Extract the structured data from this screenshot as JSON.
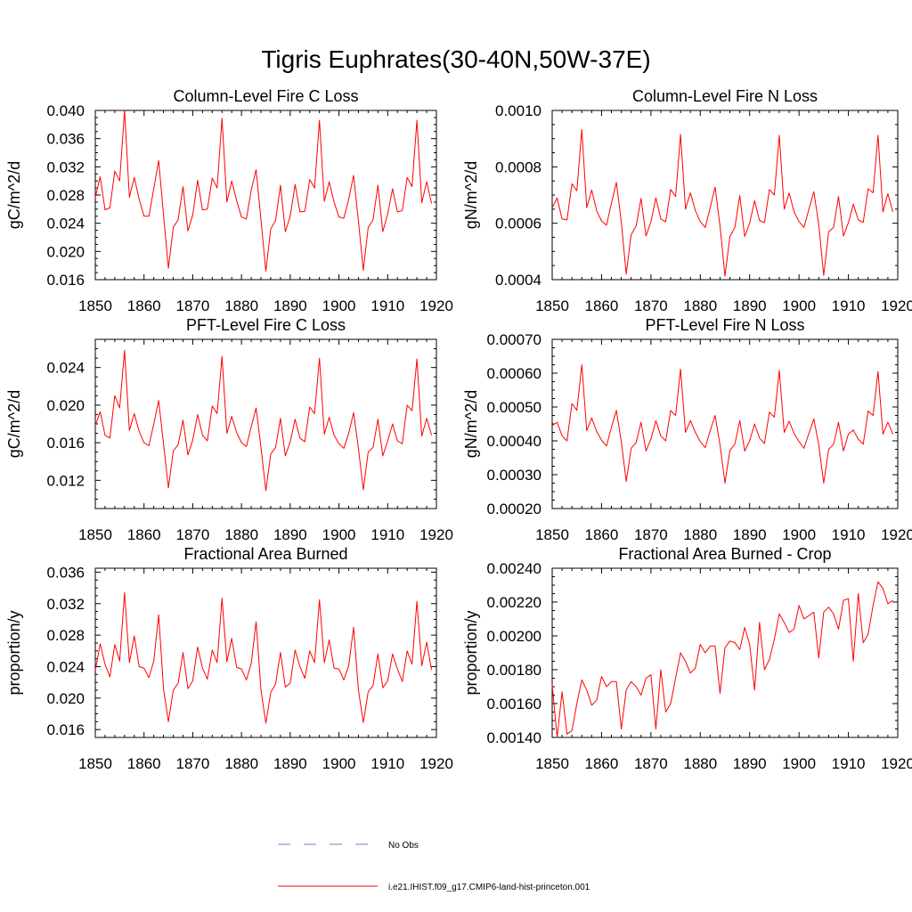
{
  "figure_title": "Tigris Euphrates(30-40N,50W-37E)",
  "legend": {
    "entries": [
      {
        "label": "No Obs",
        "color": "#6f7fbf",
        "dash": true
      },
      {
        "label": "i.e21.IHIST.f09_g17.CMIP6-land-hist-princeton.001",
        "color": "#ff0000",
        "dash": false
      }
    ]
  },
  "chart_data": [
    {
      "type": "line",
      "title": "Column-Level Fire C Loss",
      "ylabel": "gC/m^2/d",
      "xlim": [
        1850,
        1920
      ],
      "ylim": [
        0.016,
        0.04
      ],
      "xticks": [
        1850,
        1860,
        1870,
        1880,
        1890,
        1900,
        1910,
        1920
      ],
      "yticks": [
        0.016,
        0.02,
        0.024,
        0.028,
        0.032,
        0.036,
        0.04
      ],
      "ytick_labels": [
        "0.016",
        "0.020",
        "0.024",
        "0.028",
        "0.032",
        "0.036",
        "0.040"
      ],
      "x_start": 1850,
      "series": [
        {
          "color": "#ff0000",
          "values": [
            0.0276,
            0.0306,
            0.0259,
            0.0262,
            0.0314,
            0.03,
            0.04,
            0.0277,
            0.0305,
            0.0274,
            0.025,
            0.025,
            0.0289,
            0.0329,
            0.0252,
            0.0176,
            0.0234,
            0.0245,
            0.0292,
            0.0229,
            0.0252,
            0.0301,
            0.0259,
            0.026,
            0.0304,
            0.029,
            0.0389,
            0.027,
            0.03,
            0.0272,
            0.0249,
            0.0246,
            0.0287,
            0.0316,
            0.0245,
            0.0172,
            0.0232,
            0.0244,
            0.0294,
            0.0228,
            0.025,
            0.0295,
            0.0256,
            0.0257,
            0.0302,
            0.029,
            0.0386,
            0.0271,
            0.0299,
            0.027,
            0.0249,
            0.0247,
            0.0274,
            0.0308,
            0.0243,
            0.0173,
            0.0234,
            0.0245,
            0.0294,
            0.0228,
            0.0253,
            0.0289,
            0.0256,
            0.0258,
            0.0305,
            0.0292,
            0.0386,
            0.0269,
            0.0299,
            0.0268
          ]
        }
      ]
    },
    {
      "type": "line",
      "title": "Column-Level Fire N Loss",
      "ylabel": "gN/m^2/d",
      "xlim": [
        1850,
        1920
      ],
      "ylim": [
        0.0004,
        0.001
      ],
      "xticks": [
        1850,
        1860,
        1870,
        1880,
        1890,
        1900,
        1910,
        1920
      ],
      "yticks": [
        0.0004,
        0.0006,
        0.0008,
        0.001
      ],
      "ytick_labels": [
        "0.0004",
        "0.0006",
        "0.0008",
        "0.0010"
      ],
      "x_start": 1850,
      "series": [
        {
          "color": "#ff0000",
          "values": [
            0.000655,
            0.00069,
            0.000615,
            0.000612,
            0.00074,
            0.000715,
            0.000932,
            0.000655,
            0.000718,
            0.000645,
            0.000608,
            0.000593,
            0.00067,
            0.000745,
            0.000605,
            0.00042,
            0.00056,
            0.00059,
            0.000688,
            0.000555,
            0.000605,
            0.00069,
            0.000615,
            0.000605,
            0.00072,
            0.000695,
            0.000915,
            0.00065,
            0.000708,
            0.000645,
            0.000606,
            0.000585,
            0.000655,
            0.000728,
            0.00059,
            0.000412,
            0.000553,
            0.000585,
            0.000698,
            0.000553,
            0.0006,
            0.00068,
            0.00061,
            0.000602,
            0.00072,
            0.0007,
            0.000912,
            0.00065,
            0.000707,
            0.00064,
            0.000606,
            0.000585,
            0.00065,
            0.000712,
            0.000595,
            0.000415,
            0.00057,
            0.000585,
            0.000695,
            0.000555,
            0.000602,
            0.000668,
            0.000612,
            0.000603,
            0.000722,
            0.000708,
            0.000912,
            0.00064,
            0.000705,
            0.00064
          ]
        }
      ]
    },
    {
      "type": "line",
      "title": "PFT-Level Fire C Loss",
      "ylabel": "gC/m^2/d",
      "xlim": [
        1850,
        1920
      ],
      "ylim": [
        0.009,
        0.027
      ],
      "xticks": [
        1850,
        1860,
        1870,
        1880,
        1890,
        1900,
        1910,
        1920
      ],
      "yticks": [
        0.012,
        0.016,
        0.02,
        0.024
      ],
      "ytick_labels": [
        "0.012",
        "0.016",
        "0.020",
        "0.024"
      ],
      "x_start": 1850,
      "series": [
        {
          "color": "#ff0000",
          "values": [
            0.0178,
            0.0193,
            0.0168,
            0.0165,
            0.021,
            0.0197,
            0.0258,
            0.0173,
            0.0191,
            0.0172,
            0.016,
            0.0157,
            0.018,
            0.0205,
            0.0159,
            0.0112,
            0.0151,
            0.0158,
            0.0184,
            0.0147,
            0.0163,
            0.019,
            0.0168,
            0.0162,
            0.0199,
            0.0191,
            0.0252,
            0.017,
            0.0188,
            0.0171,
            0.016,
            0.0156,
            0.0177,
            0.0197,
            0.0155,
            0.0109,
            0.0148,
            0.0155,
            0.0186,
            0.0146,
            0.0161,
            0.0185,
            0.0165,
            0.0161,
            0.0198,
            0.0191,
            0.025,
            0.0169,
            0.0187,
            0.0168,
            0.0159,
            0.0154,
            0.017,
            0.0192,
            0.0154,
            0.011,
            0.015,
            0.0155,
            0.0185,
            0.0146,
            0.0162,
            0.018,
            0.0162,
            0.0159,
            0.02,
            0.0194,
            0.0249,
            0.0167,
            0.0186,
            0.0168
          ]
        }
      ]
    },
    {
      "type": "line",
      "title": "PFT-Level Fire N Loss",
      "ylabel": "gN/m^2/d",
      "xlim": [
        1850,
        1920
      ],
      "ylim": [
        0.0002,
        0.0007
      ],
      "xticks": [
        1850,
        1860,
        1870,
        1880,
        1890,
        1900,
        1910,
        1920
      ],
      "yticks": [
        0.0002,
        0.0003,
        0.0004,
        0.0005,
        0.0006,
        0.0007
      ],
      "ytick_labels": [
        "0.00020",
        "0.00030",
        "0.00040",
        "0.00050",
        "0.00060",
        "0.00070"
      ],
      "x_start": 1850,
      "series": [
        {
          "color": "#ff0000",
          "values": [
            0.000445,
            0.000455,
            0.000415,
            0.0004,
            0.00051,
            0.00049,
            0.000625,
            0.00043,
            0.000468,
            0.000428,
            0.000402,
            0.000385,
            0.00044,
            0.00049,
            0.000398,
            0.00028,
            0.000378,
            0.000395,
            0.000455,
            0.00037,
            0.000405,
            0.00046,
            0.000415,
            0.0004,
            0.00049,
            0.000475,
            0.000612,
            0.000425,
            0.00046,
            0.000425,
            0.000398,
            0.00038,
            0.00043,
            0.000475,
            0.000388,
            0.000275,
            0.000372,
            0.00039,
            0.00046,
            0.00037,
            0.0004,
            0.00045,
            0.000408,
            0.000392,
            0.000485,
            0.00047,
            0.000608,
            0.000425,
            0.000458,
            0.000422,
            0.000398,
            0.000378,
            0.000422,
            0.000465,
            0.000388,
            0.000275,
            0.000375,
            0.00039,
            0.000455,
            0.00037,
            0.00042,
            0.000432,
            0.000405,
            0.00039,
            0.000488,
            0.000475,
            0.000605,
            0.00042,
            0.000455,
            0.00042
          ]
        }
      ]
    },
    {
      "type": "line",
      "title": "Fractional Area Burned",
      "ylabel": "proportion/y",
      "xlim": [
        1850,
        1920
      ],
      "ylim": [
        0.015,
        0.0365
      ],
      "xticks": [
        1850,
        1860,
        1870,
        1880,
        1890,
        1900,
        1910,
        1920
      ],
      "yticks": [
        0.016,
        0.02,
        0.024,
        0.028,
        0.032,
        0.036
      ],
      "ytick_labels": [
        "0.016",
        "0.020",
        "0.024",
        "0.028",
        "0.032",
        "0.036"
      ],
      "x_start": 1850,
      "series": [
        {
          "color": "#ff0000",
          "values": [
            0.0235,
            0.0269,
            0.0243,
            0.0227,
            0.0268,
            0.0247,
            0.0334,
            0.0245,
            0.0279,
            0.024,
            0.0238,
            0.0226,
            0.0247,
            0.0306,
            0.0212,
            0.017,
            0.021,
            0.0219,
            0.0258,
            0.0212,
            0.0222,
            0.0265,
            0.0238,
            0.0224,
            0.0261,
            0.0245,
            0.0327,
            0.0246,
            0.0276,
            0.0239,
            0.0237,
            0.0223,
            0.0244,
            0.0297,
            0.021,
            0.0168,
            0.0207,
            0.0218,
            0.0258,
            0.0214,
            0.0219,
            0.0261,
            0.024,
            0.0225,
            0.026,
            0.0245,
            0.0325,
            0.0245,
            0.0274,
            0.0238,
            0.0237,
            0.0223,
            0.0241,
            0.029,
            0.021,
            0.0169,
            0.0208,
            0.0216,
            0.0256,
            0.0213,
            0.0222,
            0.0256,
            0.0237,
            0.0221,
            0.026,
            0.0243,
            0.0323,
            0.0241,
            0.0271,
            0.0236
          ]
        }
      ]
    },
    {
      "type": "line",
      "title": "Fractional Area Burned - Crop",
      "ylabel": "proportion/y",
      "xlim": [
        1850,
        1920
      ],
      "ylim": [
        0.0014,
        0.0024
      ],
      "xticks": [
        1850,
        1860,
        1870,
        1880,
        1890,
        1900,
        1910,
        1920
      ],
      "yticks": [
        0.0014,
        0.0016,
        0.0018,
        0.002,
        0.0022,
        0.0024
      ],
      "ytick_labels": [
        "0.00140",
        "0.00160",
        "0.00180",
        "0.00200",
        "0.00220",
        "0.00240"
      ],
      "x_start": 1850,
      "series": [
        {
          "color": "#ff0000",
          "values": [
            0.00171,
            0.0014,
            0.00167,
            0.00142,
            0.00144,
            0.0016,
            0.00174,
            0.00168,
            0.00159,
            0.00162,
            0.00176,
            0.0017,
            0.00173,
            0.00173,
            0.00145,
            0.00168,
            0.00173,
            0.0017,
            0.00165,
            0.00175,
            0.00177,
            0.00145,
            0.0018,
            0.00155,
            0.0016,
            0.00175,
            0.0019,
            0.00185,
            0.00178,
            0.00181,
            0.00195,
            0.0019,
            0.00194,
            0.00194,
            0.00166,
            0.00193,
            0.00197,
            0.00196,
            0.00192,
            0.00205,
            0.00195,
            0.00168,
            0.00208,
            0.0018,
            0.00186,
            0.00198,
            0.00213,
            0.00208,
            0.00202,
            0.00204,
            0.00218,
            0.0021,
            0.00212,
            0.00214,
            0.00187,
            0.00214,
            0.00217,
            0.00213,
            0.00204,
            0.00221,
            0.00222,
            0.00185,
            0.00225,
            0.00196,
            0.00201,
            0.00218,
            0.00232,
            0.00228,
            0.00219,
            0.00221
          ]
        }
      ]
    }
  ]
}
